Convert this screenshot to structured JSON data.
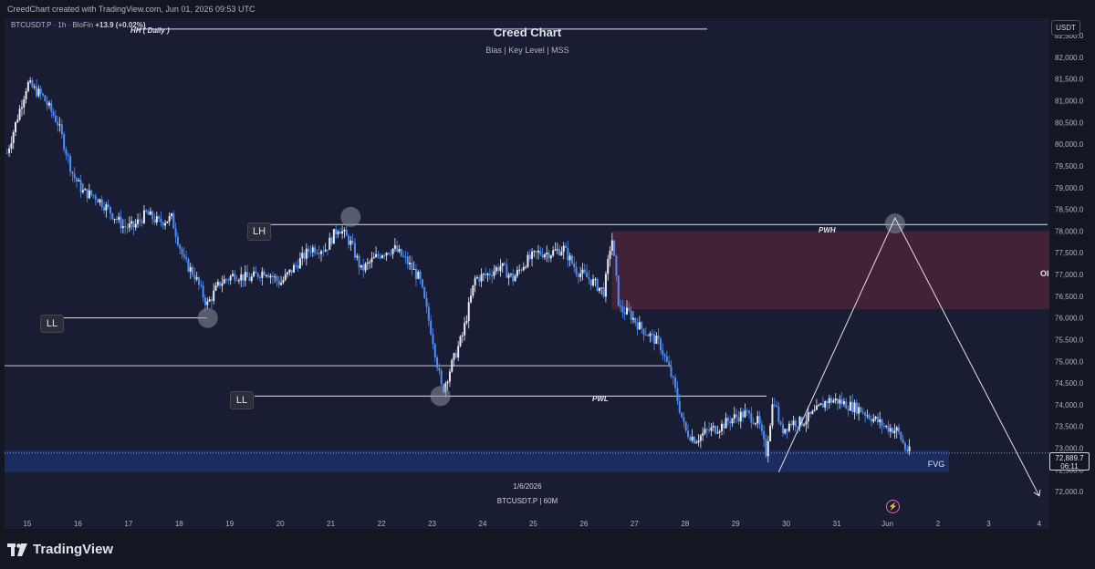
{
  "topbar": {
    "caption": "CreedChart created with TradingView.com, Jun 01, 2026 09:53 UTC"
  },
  "symbol": {
    "name": "BTCUSDT.P · 1h · BloFin",
    "change": "+13.9 (+0.02%)"
  },
  "header": {
    "title": "Creed Chart",
    "subtitle": "Bias  |  Key Level  |  MSS"
  },
  "currency_badge": "USDT",
  "current_price": {
    "value": "72,889.7",
    "countdown": "06:11"
  },
  "center_caption": {
    "date": "1/6/2026",
    "symbol": "BTCUSDT.P | 60M"
  },
  "footer": {
    "brand": "TradingView"
  },
  "colors": {
    "bg": "#181d34",
    "candle_up": "#e8ebf3",
    "candle_down": "#4f8ef7",
    "ob_zone": "#4a2337",
    "fvg_zone": "#1c2f66",
    "line": "#e0e3eb"
  },
  "chart_data": {
    "type": "candlestick",
    "title": "Creed Chart",
    "xlabel": "",
    "ylabel": "",
    "x_ticks": [
      "15",
      "16",
      "17",
      "18",
      "19",
      "20",
      "21",
      "22",
      "23",
      "24",
      "25",
      "26",
      "27",
      "28",
      "29",
      "30",
      "31",
      "Jun",
      "2",
      "3",
      "4"
    ],
    "y_ticks": [
      "72,000.0",
      "72,500.0",
      "73,000.0",
      "73,500.0",
      "74,000.0",
      "74,500.0",
      "75,000.0",
      "75,500.0",
      "76,000.0",
      "76,500.0",
      "77,000.0",
      "77,500.0",
      "78,000.0",
      "78,500.0",
      "79,000.0",
      "79,500.0",
      "80,000.0",
      "80,500.0",
      "81,000.0",
      "81,500.0",
      "82,000.0",
      "82,500.0"
    ],
    "ylim": [
      71500,
      82900
    ],
    "xlim": [
      14.55,
      35.2
    ],
    "closes": [
      [
        14.6,
        79.8
      ],
      [
        15.0,
        81.4
      ],
      [
        15.3,
        81.1
      ],
      [
        15.6,
        80.5
      ],
      [
        15.9,
        79.3
      ],
      [
        16.1,
        78.9
      ],
      [
        16.35,
        78.8
      ],
      [
        16.6,
        78.5
      ],
      [
        16.9,
        78.1
      ],
      [
        17.1,
        78.1
      ],
      [
        17.35,
        78.4
      ],
      [
        17.6,
        78.2
      ],
      [
        17.85,
        78.3
      ],
      [
        18.1,
        77.3
      ],
      [
        18.3,
        77.0
      ],
      [
        18.55,
        76.3
      ],
      [
        18.8,
        76.8
      ],
      [
        19.1,
        77.0
      ],
      [
        19.4,
        76.9
      ],
      [
        19.7,
        77.1
      ],
      [
        20.0,
        76.8
      ],
      [
        20.3,
        77.2
      ],
      [
        20.6,
        77.6
      ],
      [
        20.9,
        77.6
      ],
      [
        21.15,
        78.1
      ],
      [
        21.4,
        77.7
      ],
      [
        21.6,
        77.1
      ],
      [
        21.8,
        77.3
      ],
      [
        22.0,
        77.5
      ],
      [
        22.25,
        77.6
      ],
      [
        22.5,
        77.3
      ],
      [
        22.75,
        76.9
      ],
      [
        23.0,
        75.6
      ],
      [
        23.2,
        74.3
      ],
      [
        23.35,
        74.8
      ],
      [
        23.6,
        75.6
      ],
      [
        23.85,
        76.9
      ],
      [
        24.1,
        77.0
      ],
      [
        24.35,
        77.2
      ],
      [
        24.6,
        76.9
      ],
      [
        24.85,
        77.3
      ],
      [
        25.1,
        77.5
      ],
      [
        25.35,
        77.5
      ],
      [
        25.6,
        77.6
      ],
      [
        25.85,
        77.1
      ],
      [
        26.1,
        76.9
      ],
      [
        26.4,
        76.6
      ],
      [
        26.55,
        77.9
      ],
      [
        26.7,
        76.2
      ],
      [
        26.9,
        76.1
      ],
      [
        27.1,
        75.8
      ],
      [
        27.3,
        75.6
      ],
      [
        27.5,
        75.4
      ],
      [
        27.75,
        74.6
      ],
      [
        28.0,
        73.4
      ],
      [
        28.2,
        73.2
      ],
      [
        28.45,
        73.4
      ],
      [
        28.7,
        73.5
      ],
      [
        28.95,
        73.7
      ],
      [
        29.2,
        73.8
      ],
      [
        29.45,
        73.6
      ],
      [
        29.6,
        72.9
      ],
      [
        29.75,
        74.2
      ],
      [
        29.9,
        73.4
      ],
      [
        30.1,
        73.6
      ],
      [
        30.3,
        73.6
      ],
      [
        30.55,
        73.8
      ],
      [
        30.8,
        74.1
      ],
      [
        31.0,
        74.1
      ],
      [
        31.2,
        74.0
      ],
      [
        31.45,
        73.9
      ],
      [
        31.7,
        73.7
      ],
      [
        31.95,
        73.5
      ],
      [
        32.2,
        73.4
      ],
      [
        32.35,
        73.0
      ],
      [
        32.45,
        72.9
      ]
    ],
    "annotations": {
      "hh": {
        "label": "HH ( Daily )",
        "price": 82650
      },
      "lh": {
        "label": "LH",
        "price": 78200,
        "x": 21.3
      },
      "ll_1": {
        "label": "LL",
        "price": 76000,
        "x": 18.55
      },
      "ll_2": {
        "label": "LL",
        "price": 74200,
        "x": 23.2
      },
      "pwh": {
        "label": "PWH",
        "price": 78150
      },
      "pwl": {
        "label": "PWL",
        "price": 74200
      },
      "mid_line": {
        "price": 74900
      },
      "ob_zone": {
        "label": "OI",
        "from_x": 26.55,
        "price_high": 78000,
        "price_low": 76200
      },
      "fvg_zone": {
        "label": "FVG",
        "price_high": 72950,
        "price_low": 72450
      },
      "projection": {
        "from": [
          29.85,
          72450
        ],
        "peak": [
          32.15,
          78300
        ],
        "to": [
          35.0,
          71900
        ]
      }
    }
  }
}
